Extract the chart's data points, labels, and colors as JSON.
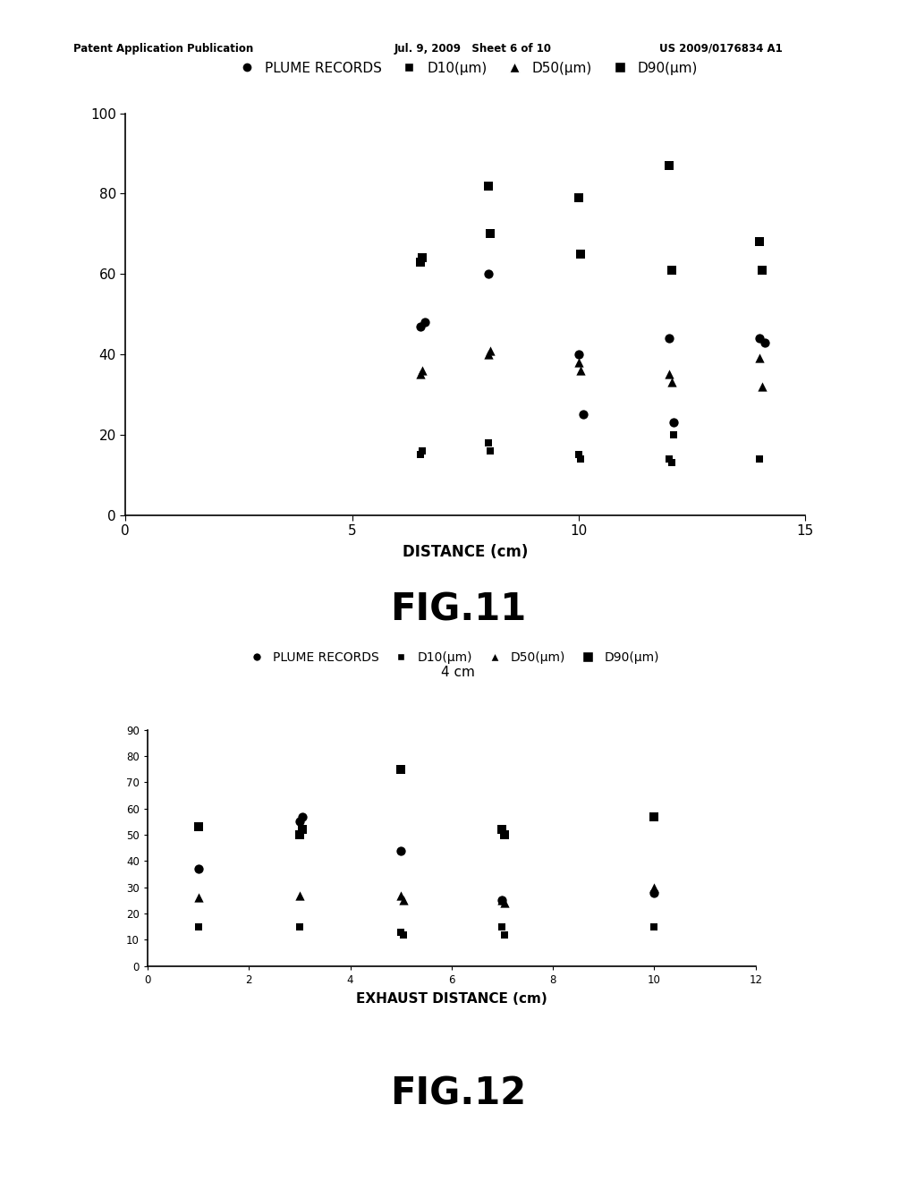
{
  "header_left": "Patent Application Publication",
  "header_mid": "Jul. 9, 2009   Sheet 6 of 10",
  "header_right": "US 2009/0176834 A1",
  "fig11": {
    "xlabel": "DISTANCE (cm)",
    "xlim": [
      0,
      15
    ],
    "ylim": [
      0,
      100
    ],
    "xticks": [
      0,
      5,
      10,
      15
    ],
    "yticks": [
      0,
      20,
      40,
      60,
      80,
      100
    ],
    "fig_label": "FIG.11",
    "plume_x": [
      6.5,
      6.6,
      8.0,
      10.0,
      10.1,
      12.0,
      12.1,
      14.0,
      14.1
    ],
    "plume_y": [
      47,
      48,
      60,
      40,
      25,
      44,
      23,
      44,
      43
    ],
    "d10_x": [
      6.5,
      6.55,
      8.0,
      8.05,
      10.0,
      10.05,
      12.0,
      12.05,
      12.1,
      14.0
    ],
    "d10_y": [
      15,
      16,
      18,
      16,
      15,
      14,
      14,
      13,
      20,
      14
    ],
    "d50_x": [
      6.5,
      6.55,
      8.0,
      8.05,
      10.0,
      10.05,
      12.0,
      12.05,
      14.0,
      14.05
    ],
    "d50_y": [
      35,
      36,
      40,
      41,
      38,
      36,
      35,
      33,
      39,
      32
    ],
    "d90_x": [
      6.5,
      6.55,
      8.0,
      8.05,
      10.0,
      10.05,
      12.0,
      12.05,
      14.0,
      14.05
    ],
    "d90_y": [
      63,
      64,
      82,
      70,
      79,
      65,
      87,
      61,
      68,
      61
    ]
  },
  "fig12": {
    "title": "4 cm",
    "xlabel": "EXHAUST DISTANCE (cm)",
    "xlim": [
      0,
      12
    ],
    "ylim": [
      0,
      90
    ],
    "xticks": [
      0,
      2,
      4,
      6,
      8,
      10,
      12
    ],
    "yticks": [
      0,
      10,
      20,
      30,
      40,
      50,
      60,
      70,
      80,
      90
    ],
    "fig_label": "FIG.12",
    "plume_x": [
      1.0,
      3.0,
      3.05,
      5.0,
      7.0,
      10.0
    ],
    "plume_y": [
      37,
      55,
      57,
      44,
      25,
      28
    ],
    "d10_x": [
      1.0,
      3.0,
      5.0,
      5.05,
      7.0,
      7.05,
      10.0
    ],
    "d10_y": [
      15,
      15,
      13,
      12,
      15,
      12,
      15
    ],
    "d50_x": [
      1.0,
      3.0,
      5.0,
      5.05,
      7.0,
      7.05,
      10.0
    ],
    "d50_y": [
      26,
      27,
      27,
      25,
      25,
      24,
      30
    ],
    "d90_x": [
      1.0,
      3.0,
      3.05,
      5.0,
      7.0,
      7.05,
      10.0
    ],
    "d90_y": [
      53,
      50,
      52,
      75,
      52,
      50,
      57
    ]
  },
  "bg_color": "#ffffff",
  "marker_color": "#000000",
  "ms_large": 55,
  "ms_small": 38
}
